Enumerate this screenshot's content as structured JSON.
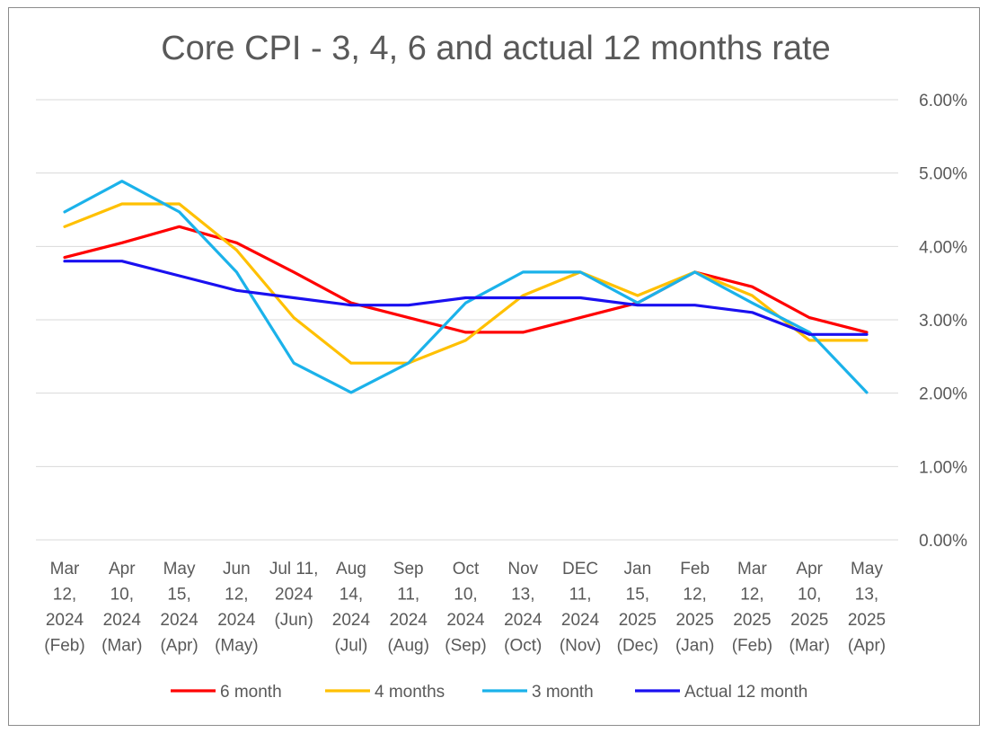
{
  "chart_data": {
    "type": "line",
    "title": "Core CPI - 3, 4, 6 and actual 12 months rate",
    "xlabel": "",
    "ylabel": "",
    "ylim": [
      0,
      6
    ],
    "y_axis_position": "right",
    "y_ticks": [
      "0.00%",
      "1.00%",
      "2.00%",
      "3.00%",
      "4.00%",
      "5.00%",
      "6.00%"
    ],
    "grid": true,
    "legend_position": "bottom",
    "categories": [
      [
        "Mar",
        "12,",
        "2024",
        "(Feb)"
      ],
      [
        "Apr",
        "10,",
        "2024",
        "(Mar)"
      ],
      [
        "May",
        "15,",
        "2024",
        "(Apr)"
      ],
      [
        "Jun",
        "12,",
        "2024",
        "(May)"
      ],
      [
        "Jul 11,",
        "2024",
        "(Jun)"
      ],
      [
        "Aug",
        "14,",
        "2024",
        "(Jul)"
      ],
      [
        "Sep",
        "11,",
        "2024",
        "(Aug)"
      ],
      [
        "Oct",
        "10,",
        "2024",
        "(Sep)"
      ],
      [
        "Nov",
        "13,",
        "2024",
        "(Oct)"
      ],
      [
        "DEC",
        "11,",
        "2024",
        "(Nov)"
      ],
      [
        "Jan",
        "15,",
        "2025",
        "(Dec)"
      ],
      [
        "Feb",
        "12,",
        "2025",
        "(Jan)"
      ],
      [
        "Mar",
        "12,",
        "2025",
        "(Feb)"
      ],
      [
        "Apr",
        "10,",
        "2025",
        "(Mar)"
      ],
      [
        "May",
        "13,",
        "2025",
        "(Apr)"
      ]
    ],
    "series": [
      {
        "name": "6 month",
        "color": "#ff0000",
        "values": [
          3.85,
          4.05,
          4.27,
          4.05,
          3.65,
          3.23,
          3.03,
          2.83,
          2.83,
          3.03,
          3.23,
          3.65,
          3.45,
          3.03,
          2.83
        ]
      },
      {
        "name": "4 months",
        "color": "#ffc000",
        "values": [
          4.27,
          4.58,
          4.58,
          3.95,
          3.03,
          2.41,
          2.41,
          2.72,
          3.33,
          3.65,
          3.33,
          3.65,
          3.33,
          2.72,
          2.72
        ]
      },
      {
        "name": "3 month",
        "color": "#1bb2ea",
        "values": [
          4.47,
          4.89,
          4.47,
          3.65,
          2.41,
          2.01,
          2.41,
          3.23,
          3.65,
          3.65,
          3.23,
          3.65,
          3.23,
          2.83,
          2.01
        ]
      },
      {
        "name": "Actual 12 month",
        "color": "#1a10f0",
        "values": [
          3.8,
          3.8,
          3.6,
          3.4,
          3.3,
          3.2,
          3.2,
          3.3,
          3.3,
          3.3,
          3.2,
          3.2,
          3.1,
          2.8,
          2.8
        ]
      }
    ]
  }
}
